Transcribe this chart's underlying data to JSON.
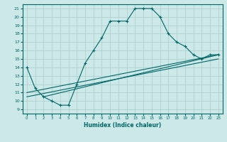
{
  "xlabel": "Humidex (Indice chaleur)",
  "ylabel": "",
  "bg_color": "#cce8e8",
  "grid_color": "#aacccc",
  "line_color": "#006666",
  "xlim": [
    -0.5,
    23.5
  ],
  "ylim": [
    8.5,
    21.5
  ],
  "xticks": [
    0,
    1,
    2,
    3,
    4,
    5,
    6,
    7,
    8,
    9,
    10,
    11,
    12,
    13,
    14,
    15,
    16,
    17,
    18,
    19,
    20,
    21,
    22,
    23
  ],
  "yticks": [
    9,
    10,
    11,
    12,
    13,
    14,
    15,
    16,
    17,
    18,
    19,
    20,
    21
  ],
  "curve_x": [
    0,
    1,
    2,
    3,
    4,
    5,
    6,
    7,
    8,
    9,
    10,
    11,
    12,
    13,
    14,
    15,
    16,
    17,
    18,
    19,
    20,
    21,
    22,
    23
  ],
  "curve_y": [
    14.0,
    11.5,
    10.5,
    10.0,
    9.5,
    9.5,
    12.0,
    14.5,
    16.0,
    17.5,
    19.5,
    19.5,
    19.5,
    21.0,
    21.0,
    21.0,
    20.0,
    18.0,
    17.0,
    16.5,
    15.5,
    15.0,
    15.5,
    15.5
  ],
  "line1_x": [
    0,
    23
  ],
  "line1_y": [
    11.0,
    15.5
  ],
  "line2_x": [
    0,
    23
  ],
  "line2_y": [
    10.5,
    15.0
  ],
  "line3_x": [
    2,
    23
  ],
  "line3_y": [
    10.5,
    15.5
  ]
}
